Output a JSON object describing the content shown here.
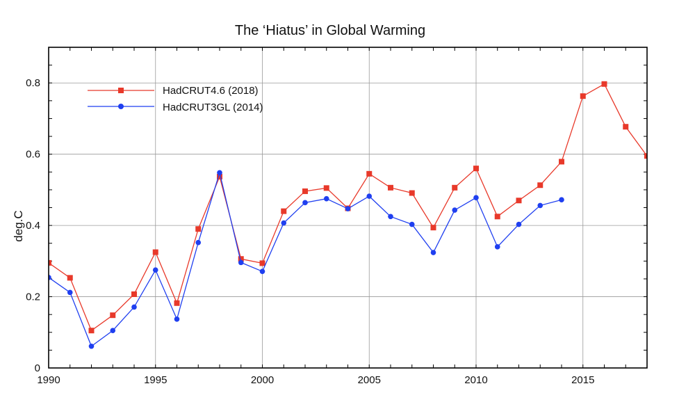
{
  "chart_data": {
    "type": "line",
    "title": "The ‘Hiatus’ in Global Warming",
    "xlabel": "",
    "ylabel": "deg.C",
    "xlim": [
      1990,
      2018
    ],
    "ylim": [
      0,
      0.9
    ],
    "x_ticks": [
      1990,
      1995,
      2000,
      2005,
      2010,
      2015
    ],
    "x_tick_labels": [
      "1990",
      "1995",
      "2000",
      "2005",
      "2010",
      "2015"
    ],
    "y_ticks": [
      0,
      0.2,
      0.4,
      0.6,
      0.8
    ],
    "y_tick_labels": [
      "0",
      "0.2",
      "0.4",
      "0.6",
      "0.8"
    ],
    "grid": true,
    "legend_position": "top-left",
    "series": [
      {
        "name": "HadCRUT4.6 (2018)",
        "color": "#e8392a",
        "marker": "square",
        "x": [
          1990,
          1991,
          1992,
          1993,
          1994,
          1995,
          1996,
          1997,
          1998,
          1999,
          2000,
          2001,
          2002,
          2003,
          2004,
          2005,
          2006,
          2007,
          2008,
          2009,
          2010,
          2011,
          2012,
          2013,
          2014,
          2015,
          2016,
          2017,
          2018
        ],
        "values": [
          0.295,
          0.253,
          0.105,
          0.148,
          0.207,
          0.325,
          0.182,
          0.39,
          0.537,
          0.306,
          0.294,
          0.44,
          0.496,
          0.505,
          0.448,
          0.545,
          0.506,
          0.491,
          0.394,
          0.506,
          0.56,
          0.425,
          0.47,
          0.513,
          0.579,
          0.763,
          0.797,
          0.677,
          0.595
        ]
      },
      {
        "name": "HadCRUT3GL (2014)",
        "color": "#1f3ff0",
        "marker": "circle",
        "x": [
          1990,
          1991,
          1992,
          1993,
          1994,
          1995,
          1996,
          1997,
          1998,
          1999,
          2000,
          2001,
          2002,
          2003,
          2004,
          2005,
          2006,
          2007,
          2008,
          2009,
          2010,
          2011,
          2012,
          2013,
          2014
        ],
        "values": [
          0.254,
          0.212,
          0.061,
          0.105,
          0.171,
          0.275,
          0.137,
          0.352,
          0.548,
          0.296,
          0.271,
          0.407,
          0.464,
          0.475,
          0.447,
          0.482,
          0.425,
          0.403,
          0.324,
          0.443,
          0.478,
          0.34,
          0.403,
          0.456,
          0.472
        ]
      }
    ]
  }
}
